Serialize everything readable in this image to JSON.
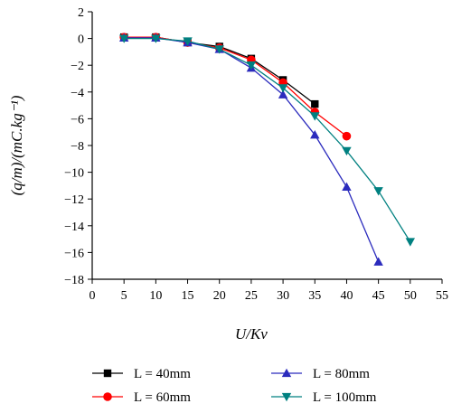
{
  "chart_data": {
    "type": "line",
    "title": "",
    "xlabel": "U/Kv",
    "ylabel": "(q/m)/(mC.kg⁻¹)",
    "xlim": [
      0,
      55
    ],
    "ylim": [
      -18,
      2
    ],
    "xticks": [
      0,
      5,
      10,
      15,
      20,
      25,
      30,
      35,
      40,
      45,
      50,
      55
    ],
    "yticks": [
      2,
      0,
      -2,
      -4,
      -6,
      -8,
      -10,
      -12,
      -14,
      -16,
      -18
    ],
    "grid": false,
    "legend_position": "bottom",
    "series": [
      {
        "name": "L = 40mm",
        "color": "#000000",
        "marker": "square",
        "x": [
          5,
          10,
          15,
          20,
          25,
          30,
          35
        ],
        "y": [
          0.1,
          0.1,
          -0.3,
          -0.6,
          -1.5,
          -3.1,
          -4.9
        ]
      },
      {
        "name": "L = 60mm",
        "color": "#ff0000",
        "marker": "circle",
        "x": [
          5,
          10,
          15,
          20,
          25,
          30,
          35,
          40
        ],
        "y": [
          0.1,
          0.1,
          -0.3,
          -0.7,
          -1.6,
          -3.3,
          -5.5,
          -7.3
        ]
      },
      {
        "name": "L = 80mm",
        "color": "#2b2bbd",
        "marker": "triangle-up",
        "x": [
          5,
          10,
          15,
          20,
          25,
          30,
          35,
          40,
          45
        ],
        "y": [
          0.05,
          0.05,
          -0.3,
          -0.8,
          -2.2,
          -4.2,
          -7.2,
          -11.1,
          -16.7
        ]
      },
      {
        "name": "L = 100mm",
        "color": "#008080",
        "marker": "triangle-down",
        "x": [
          5,
          10,
          15,
          20,
          25,
          30,
          35,
          40,
          45,
          50
        ],
        "y": [
          0.0,
          0.0,
          -0.2,
          -0.8,
          -2.0,
          -3.7,
          -5.8,
          -8.4,
          -11.4,
          -15.2
        ]
      }
    ]
  }
}
